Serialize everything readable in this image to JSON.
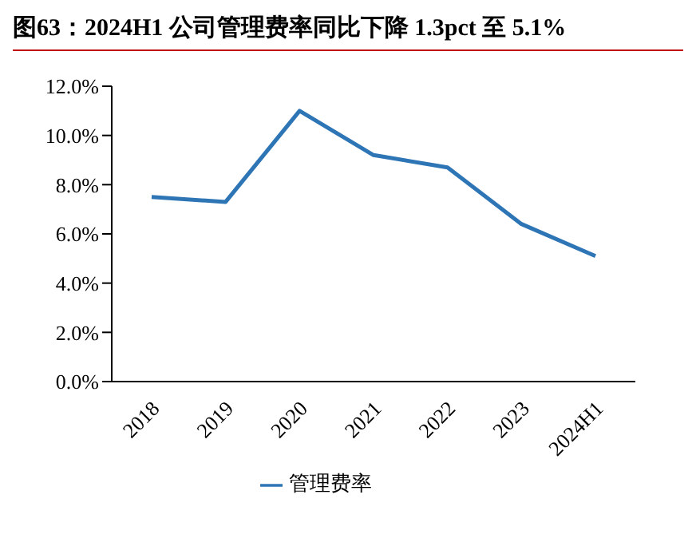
{
  "chart_data": {
    "type": "line",
    "title": "图63：2024H1 公司管理费率同比下降 1.3pct 至 5.1%",
    "categories": [
      "2018",
      "2019",
      "2020",
      "2021",
      "2022",
      "2023",
      "2024H1"
    ],
    "series": [
      {
        "name": "管理费率",
        "color": "#2e75b6",
        "values": [
          7.5,
          7.3,
          11.0,
          9.2,
          8.7,
          6.4,
          5.1
        ]
      }
    ],
    "ylim": [
      0,
      12
    ],
    "yticks": [
      {
        "value": 0,
        "label": "0.0%"
      },
      {
        "value": 2,
        "label": "2.0%"
      },
      {
        "value": 4,
        "label": "4.0%"
      },
      {
        "value": 6,
        "label": "6.0%"
      },
      {
        "value": 8,
        "label": "8.0%"
      },
      {
        "value": 10,
        "label": "10.0%"
      },
      {
        "value": 12,
        "label": "12.0%"
      }
    ],
    "grid": false,
    "legend": "bottom",
    "marker": "none",
    "line_style": "solid"
  }
}
